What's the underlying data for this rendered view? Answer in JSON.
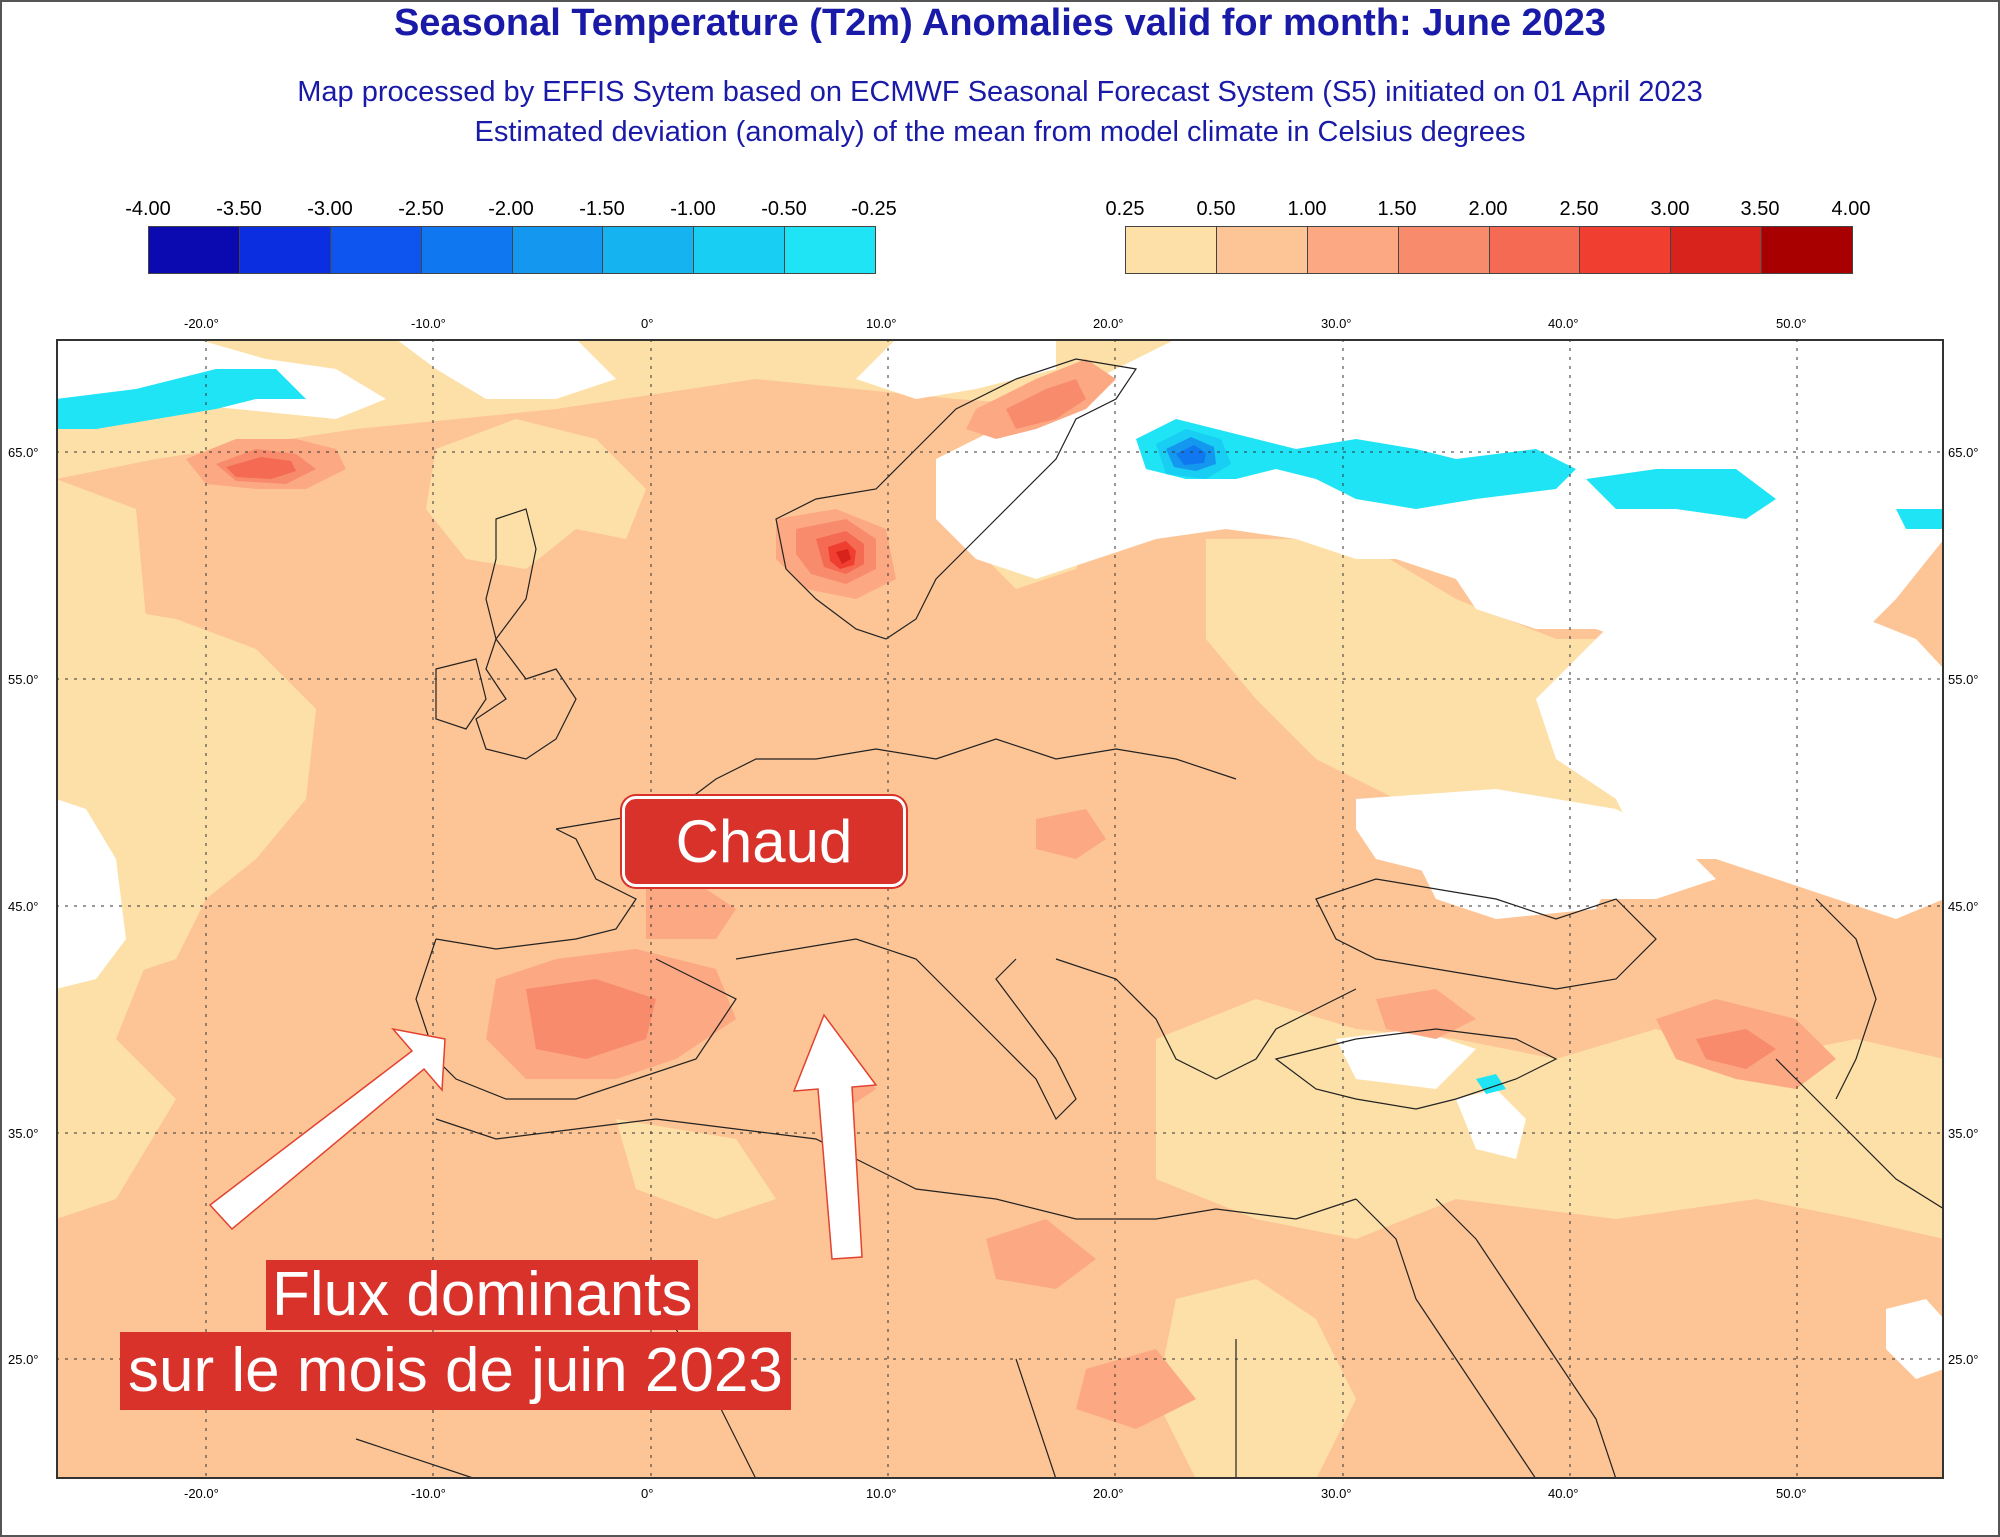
{
  "title": "Seasonal Temperature (T2m) Anomalies valid for month: June 2023",
  "subtitle_line1": "Map processed by EFFIS Sytem based on ECMWF Seasonal Forecast System (S5) initiated on 01 April 2023",
  "subtitle_line2": "Estimated deviation (anomaly) of the mean from model climate in Celsius degrees",
  "legend_negative": {
    "labels": [
      "-4.00",
      "-3.50",
      "-3.00",
      "-2.50",
      "-2.00",
      "-1.50",
      "-1.00",
      "-0.50",
      "-0.25"
    ],
    "colors": [
      "#0a0ab0",
      "#0a2ee0",
      "#0d55ee",
      "#0f78f0",
      "#1498ef",
      "#15b4f0",
      "#18cef2",
      "#1ee4f6"
    ]
  },
  "legend_positive": {
    "labels": [
      "0.25",
      "0.50",
      "1.00",
      "1.50",
      "2.00",
      "2.50",
      "3.00",
      "3.50",
      "4.00"
    ],
    "colors": [
      "#fde0a8",
      "#fdc596",
      "#fba883",
      "#f88b6b",
      "#f46a52",
      "#f03e30",
      "#d8221c",
      "#a80000"
    ]
  },
  "axes": {
    "lon_labels": [
      "-20.0°",
      "-10.0°",
      "0°",
      "10.0°",
      "20.0°",
      "30.0°",
      "40.0°",
      "50.0°"
    ],
    "lat_labels": [
      "65.0°",
      "55.0°",
      "45.0°",
      "35.0°",
      "25.0°"
    ]
  },
  "annotations": {
    "hot_label": "Chaud",
    "flow_line1": "Flux dominants",
    "flow_line2": "sur le mois de juin 2023"
  }
}
